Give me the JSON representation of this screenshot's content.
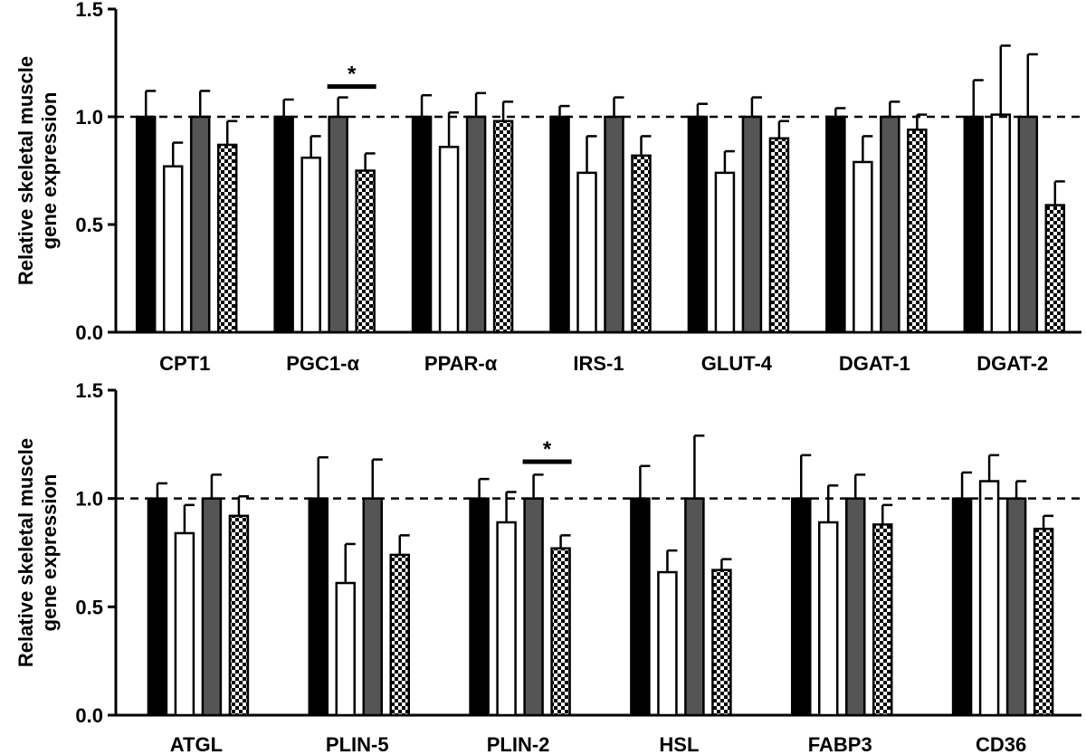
{
  "chart_data": [
    {
      "type": "bar",
      "ylabel": [
        "Relative skeletal muscle",
        "gene expression"
      ],
      "ylim": [
        0,
        1.5
      ],
      "yticks": [
        "0.0",
        "0.5",
        "1.0",
        "1.5"
      ],
      "reference_line": 1.0,
      "group_fills": [
        "#000000",
        "#ffffff",
        "#555555",
        "checkered"
      ],
      "categories": [
        "CPT1",
        "PGC1-α",
        "PPAR-α",
        "IRS-1",
        "GLUT-4",
        "DGAT-1",
        "DGAT-2"
      ],
      "bars": [
        [
          [
            1.0,
            0.12
          ],
          [
            0.77,
            0.11
          ],
          [
            1.0,
            0.12
          ],
          [
            0.87,
            0.11
          ]
        ],
        [
          [
            1.0,
            0.08
          ],
          [
            0.81,
            0.1
          ],
          [
            1.0,
            0.09
          ],
          [
            0.75,
            0.08
          ]
        ],
        [
          [
            1.0,
            0.1
          ],
          [
            0.86,
            0.16
          ],
          [
            1.0,
            0.11
          ],
          [
            0.98,
            0.09
          ]
        ],
        [
          [
            1.0,
            0.05
          ],
          [
            0.74,
            0.17
          ],
          [
            1.0,
            0.09
          ],
          [
            0.82,
            0.09
          ]
        ],
        [
          [
            1.0,
            0.06
          ],
          [
            0.74,
            0.1
          ],
          [
            1.0,
            0.09
          ],
          [
            0.9,
            0.08
          ]
        ],
        [
          [
            1.0,
            0.04
          ],
          [
            0.79,
            0.12
          ],
          [
            1.0,
            0.07
          ],
          [
            0.94,
            0.07
          ]
        ],
        [
          [
            1.0,
            0.17
          ],
          [
            1.01,
            0.32
          ],
          [
            1.0,
            0.29
          ],
          [
            0.59,
            0.11
          ]
        ]
      ],
      "significance": [
        {
          "category_index": 1,
          "bars": [
            2,
            3
          ],
          "y": 1.14,
          "label": "*"
        }
      ]
    },
    {
      "type": "bar",
      "ylabel": [
        "Relative skeletal muscle",
        "gene expression"
      ],
      "ylim": [
        0,
        1.5
      ],
      "yticks": [
        "0.0",
        "0.5",
        "1.0",
        "1.5"
      ],
      "reference_line": 1.0,
      "group_fills": [
        "#000000",
        "#ffffff",
        "#555555",
        "checkered"
      ],
      "categories": [
        "ATGL",
        "PLIN-5",
        "PLIN-2",
        "HSL",
        "FABP3",
        "CD36"
      ],
      "bars": [
        [
          [
            1.0,
            0.07
          ],
          [
            0.84,
            0.13
          ],
          [
            1.0,
            0.11
          ],
          [
            0.92,
            0.09
          ]
        ],
        [
          [
            1.0,
            0.19
          ],
          [
            0.61,
            0.18
          ],
          [
            1.0,
            0.18
          ],
          [
            0.74,
            0.09
          ]
        ],
        [
          [
            1.0,
            0.09
          ],
          [
            0.89,
            0.14
          ],
          [
            1.0,
            0.11
          ],
          [
            0.77,
            0.06
          ]
        ],
        [
          [
            1.0,
            0.15
          ],
          [
            0.66,
            0.1
          ],
          [
            1.0,
            0.29
          ],
          [
            0.67,
            0.05
          ]
        ],
        [
          [
            1.0,
            0.2
          ],
          [
            0.89,
            0.17
          ],
          [
            1.0,
            0.11
          ],
          [
            0.88,
            0.09
          ]
        ],
        [
          [
            1.0,
            0.12
          ],
          [
            1.08,
            0.12
          ],
          [
            1.0,
            0.08
          ],
          [
            0.86,
            0.06
          ]
        ]
      ],
      "significance": [
        {
          "category_index": 2,
          "bars": [
            2,
            3
          ],
          "y": 1.17,
          "label": "*"
        }
      ]
    }
  ]
}
